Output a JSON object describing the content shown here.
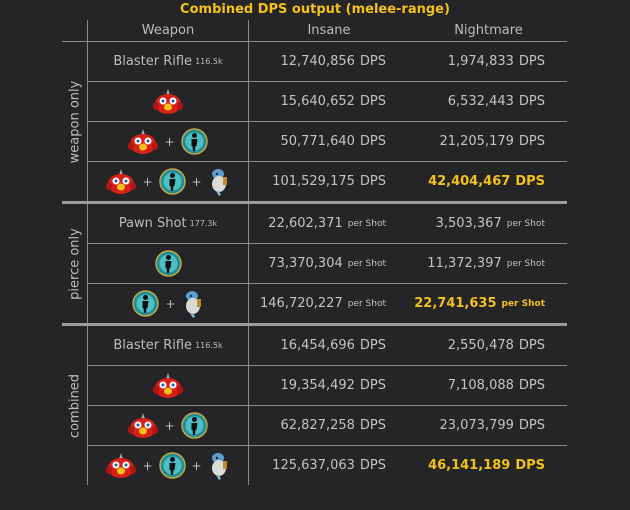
{
  "title": "Combined DPS output (melee-range)",
  "headers": [
    "Weapon",
    "Insane",
    "Nightmare"
  ],
  "colors": {
    "accent": "#f2c21b",
    "background": "#252427",
    "grid": "#8a8a8a"
  },
  "groups": [
    {
      "label": "weapon only",
      "rows": [
        {
          "weapon": {
            "text": "Blaster Rifle",
            "sub": "116.5k"
          },
          "insane": {
            "value": "12,740,856",
            "unit": "DPS"
          },
          "nightmare": {
            "value": "1,974,833",
            "unit": "DPS"
          }
        },
        {
          "weapon": {
            "icons": [
              "red-bird"
            ]
          },
          "insane": {
            "value": "15,640,652",
            "unit": "DPS"
          },
          "nightmare": {
            "value": "6,532,443",
            "unit": "DPS"
          }
        },
        {
          "weapon": {
            "icons": [
              "red-bird",
              "teal-silhouette"
            ]
          },
          "insane": {
            "value": "50,771,640",
            "unit": "DPS"
          },
          "nightmare": {
            "value": "21,205,179",
            "unit": "DPS"
          }
        },
        {
          "weapon": {
            "icons": [
              "red-bird",
              "teal-silhouette",
              "white-pet"
            ]
          },
          "insane": {
            "value": "101,529,175",
            "unit": "DPS"
          },
          "nightmare": {
            "value": "42,404,467",
            "unit": "DPS",
            "highlight": true
          }
        }
      ]
    },
    {
      "label": "pierce only",
      "rows": [
        {
          "weapon": {
            "text": "Pawn Shot",
            "sub": "177.3k"
          },
          "insane": {
            "value": "22,602,371",
            "unit": "per Shot"
          },
          "nightmare": {
            "value": "3,503,367",
            "unit": "per Shot"
          }
        },
        {
          "weapon": {
            "icons": [
              "teal-silhouette"
            ]
          },
          "insane": {
            "value": "73,370,304",
            "unit": "per Shot"
          },
          "nightmare": {
            "value": "11,372,397",
            "unit": "per Shot"
          }
        },
        {
          "weapon": {
            "icons": [
              "teal-silhouette",
              "white-pet"
            ]
          },
          "insane": {
            "value": "146,720,227",
            "unit": "per Shot"
          },
          "nightmare": {
            "value": "22,741,635",
            "unit": "per Shot",
            "highlight": true
          }
        }
      ]
    },
    {
      "label": "combined",
      "rows": [
        {
          "weapon": {
            "text": "Blaster Rifle",
            "sub": "116.5k"
          },
          "insane": {
            "value": "16,454,696",
            "unit": "DPS"
          },
          "nightmare": {
            "value": "2,550,478",
            "unit": "DPS"
          }
        },
        {
          "weapon": {
            "icons": [
              "red-bird"
            ]
          },
          "insane": {
            "value": "19,354,492",
            "unit": "DPS"
          },
          "nightmare": {
            "value": "7,108,088",
            "unit": "DPS"
          }
        },
        {
          "weapon": {
            "icons": [
              "red-bird",
              "teal-silhouette"
            ]
          },
          "insane": {
            "value": "62,827,258",
            "unit": "DPS"
          },
          "nightmare": {
            "value": "23,073,799",
            "unit": "DPS"
          }
        },
        {
          "weapon": {
            "icons": [
              "red-bird",
              "teal-silhouette",
              "white-pet"
            ]
          },
          "insane": {
            "value": "125,637,063",
            "unit": "DPS"
          },
          "nightmare": {
            "value": "46,141,189",
            "unit": "DPS",
            "highlight": true
          }
        }
      ]
    }
  ],
  "plus": "+"
}
